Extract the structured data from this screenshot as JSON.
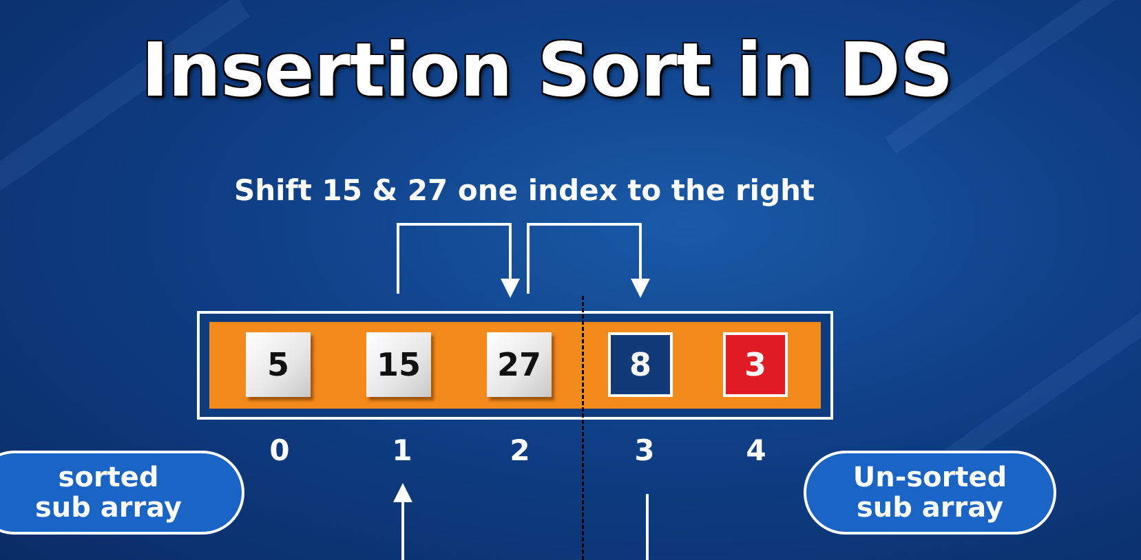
{
  "title": "Insertion Sort in DS",
  "instruction": "Shift 15 & 27 one index to the right",
  "array": {
    "cells": [
      {
        "value": "5",
        "state": "sorted"
      },
      {
        "value": "15",
        "state": "sorted"
      },
      {
        "value": "27",
        "state": "sorted"
      },
      {
        "value": "8",
        "state": "current"
      },
      {
        "value": "3",
        "state": "unsorted"
      }
    ],
    "indices": [
      "0",
      "1",
      "2",
      "3",
      "4"
    ],
    "colors": {
      "frame_bg": "#f38a1c",
      "sorted_cell": "#ffffff",
      "current_cell": "#123a78",
      "unsorted_cell": "#e01b24"
    }
  },
  "labels": {
    "sorted_line1": "sorted",
    "sorted_line2": "sub array",
    "unsorted_line1": "Un-sorted",
    "unsorted_line2": "sub array"
  }
}
